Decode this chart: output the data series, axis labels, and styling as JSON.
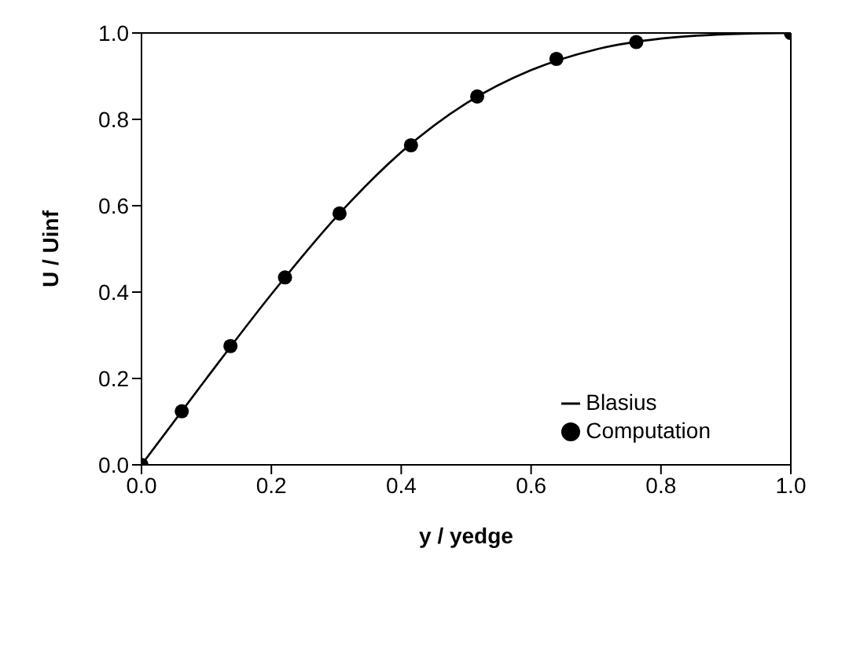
{
  "chart_data": {
    "type": "line",
    "xlabel": "y / yedge",
    "ylabel": "U / Uinf",
    "xlim": [
      0,
      1
    ],
    "ylim": [
      0,
      1
    ],
    "xticks": [
      "0.0",
      0.2,
      0.4,
      0.6,
      0.8,
      "1.0"
    ],
    "yticks": [
      "0.0",
      0.2,
      0.4,
      0.6,
      0.8,
      "1.0"
    ],
    "grid": false,
    "legend": "bottom right",
    "series": [
      {
        "name": "Blasius",
        "color": "#000000",
        "marker": "none",
        "line_style": "solid",
        "x": [
          0,
          0.1,
          0.2,
          0.3,
          0.4,
          0.5,
          0.6,
          0.7,
          0.8,
          0.9,
          1.0
        ],
        "values": [
          0,
          0.2,
          0.395,
          0.574,
          0.724,
          0.837,
          0.914,
          0.962,
          0.987,
          0.997,
          1.0
        ]
      },
      {
        "name": "Computation",
        "type": "scatter",
        "color": "#000000",
        "marker": "circle",
        "x": [
          0,
          0.062,
          0.137,
          0.221,
          0.305,
          0.415,
          0.517,
          0.639,
          0.762,
          1.0
        ],
        "values": [
          0,
          0.124,
          0.275,
          0.434,
          0.582,
          0.74,
          0.853,
          0.94,
          0.979,
          1.0
        ]
      }
    ]
  }
}
